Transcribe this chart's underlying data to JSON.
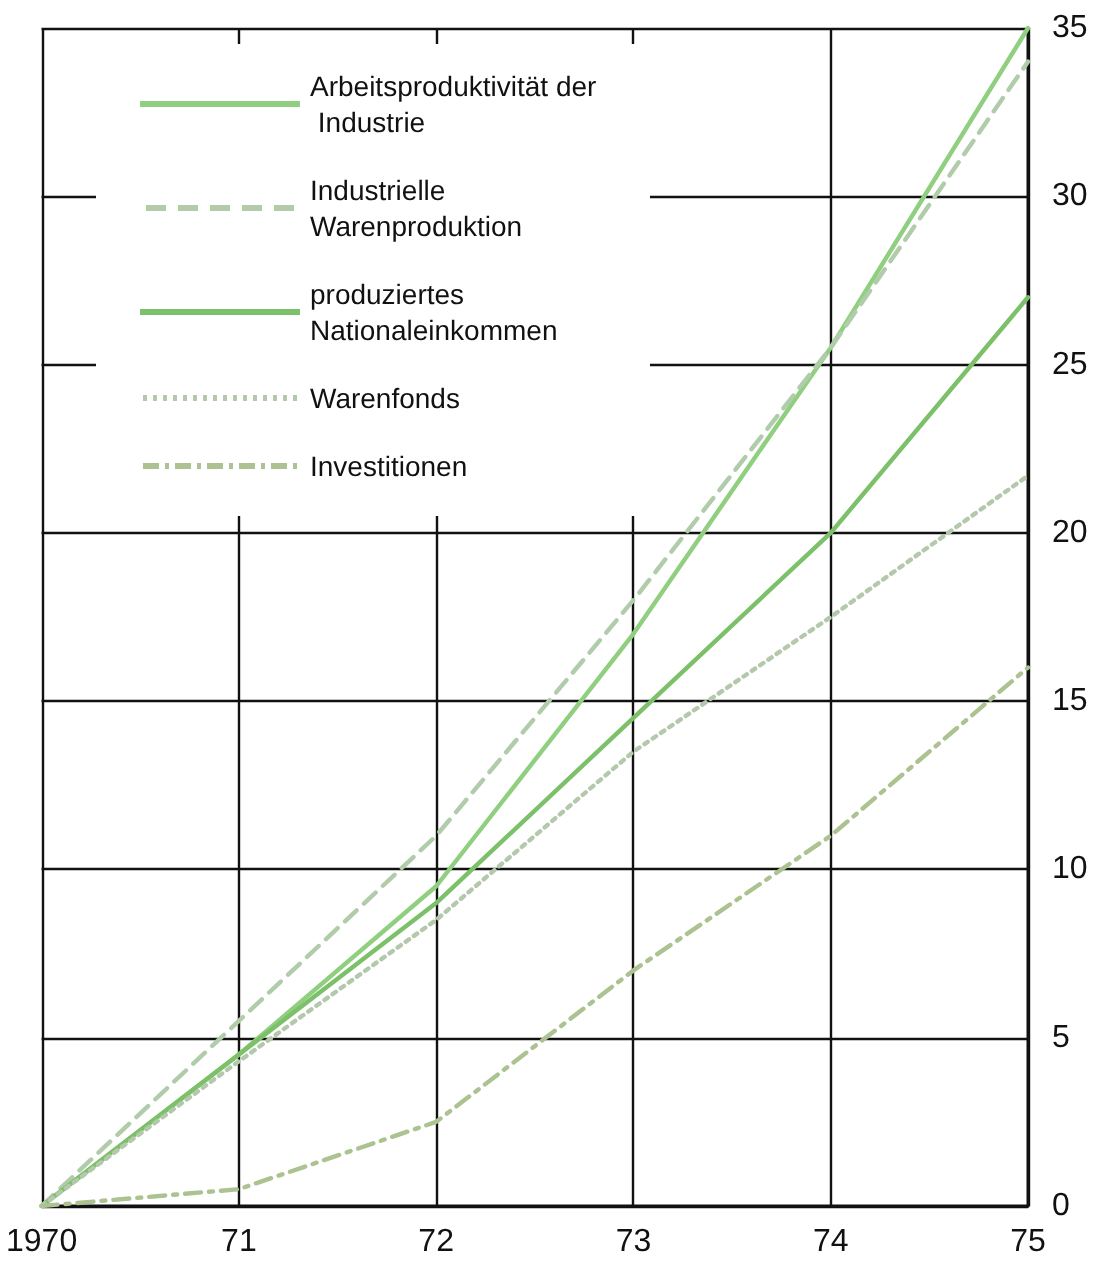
{
  "chart_data": {
    "type": "line",
    "x": [
      1970,
      1971,
      1972,
      1973,
      1974,
      1975
    ],
    "series": [
      {
        "name": "Arbeitsproduktivität der Industrie",
        "color": "#8fcf7f",
        "line_style": "solid",
        "values": [
          0,
          4.5,
          9.5,
          17,
          25.5,
          35
        ]
      },
      {
        "name": "Industrielle Warenproduktion",
        "color": "#b0ccaa",
        "line_style": "dashed",
        "values": [
          0,
          5.5,
          11,
          18,
          25.5,
          34
        ]
      },
      {
        "name": "produziertes Nationaleinkommen",
        "color": "#7cc06a",
        "line_style": "solid",
        "values": [
          0,
          4.5,
          9,
          14.5,
          20,
          27
        ]
      },
      {
        "name": "Warenfonds",
        "color": "#b4c8ac",
        "line_style": "dotted",
        "values": [
          0,
          4.3,
          8.5,
          13.5,
          17.5,
          21.7
        ]
      },
      {
        "name": "Investitionen",
        "color": "#acc290",
        "line_style": "dashdot",
        "values": [
          0,
          0.5,
          2.5,
          7,
          11,
          16
        ]
      }
    ],
    "xlim": [
      1970,
      1975
    ],
    "xticks": [
      {
        "value": 1970,
        "label": "1970"
      },
      {
        "value": 1971,
        "label": "71"
      },
      {
        "value": 1972,
        "label": "72"
      },
      {
        "value": 1973,
        "label": "73"
      },
      {
        "value": 1974,
        "label": "74"
      },
      {
        "value": 1975,
        "label": "75"
      }
    ],
    "ylim": [
      0,
      35
    ],
    "yticks": [
      0,
      5,
      10,
      15,
      20,
      25,
      30,
      35
    ],
    "grid": true,
    "legend": "top left",
    "marker": "none"
  }
}
